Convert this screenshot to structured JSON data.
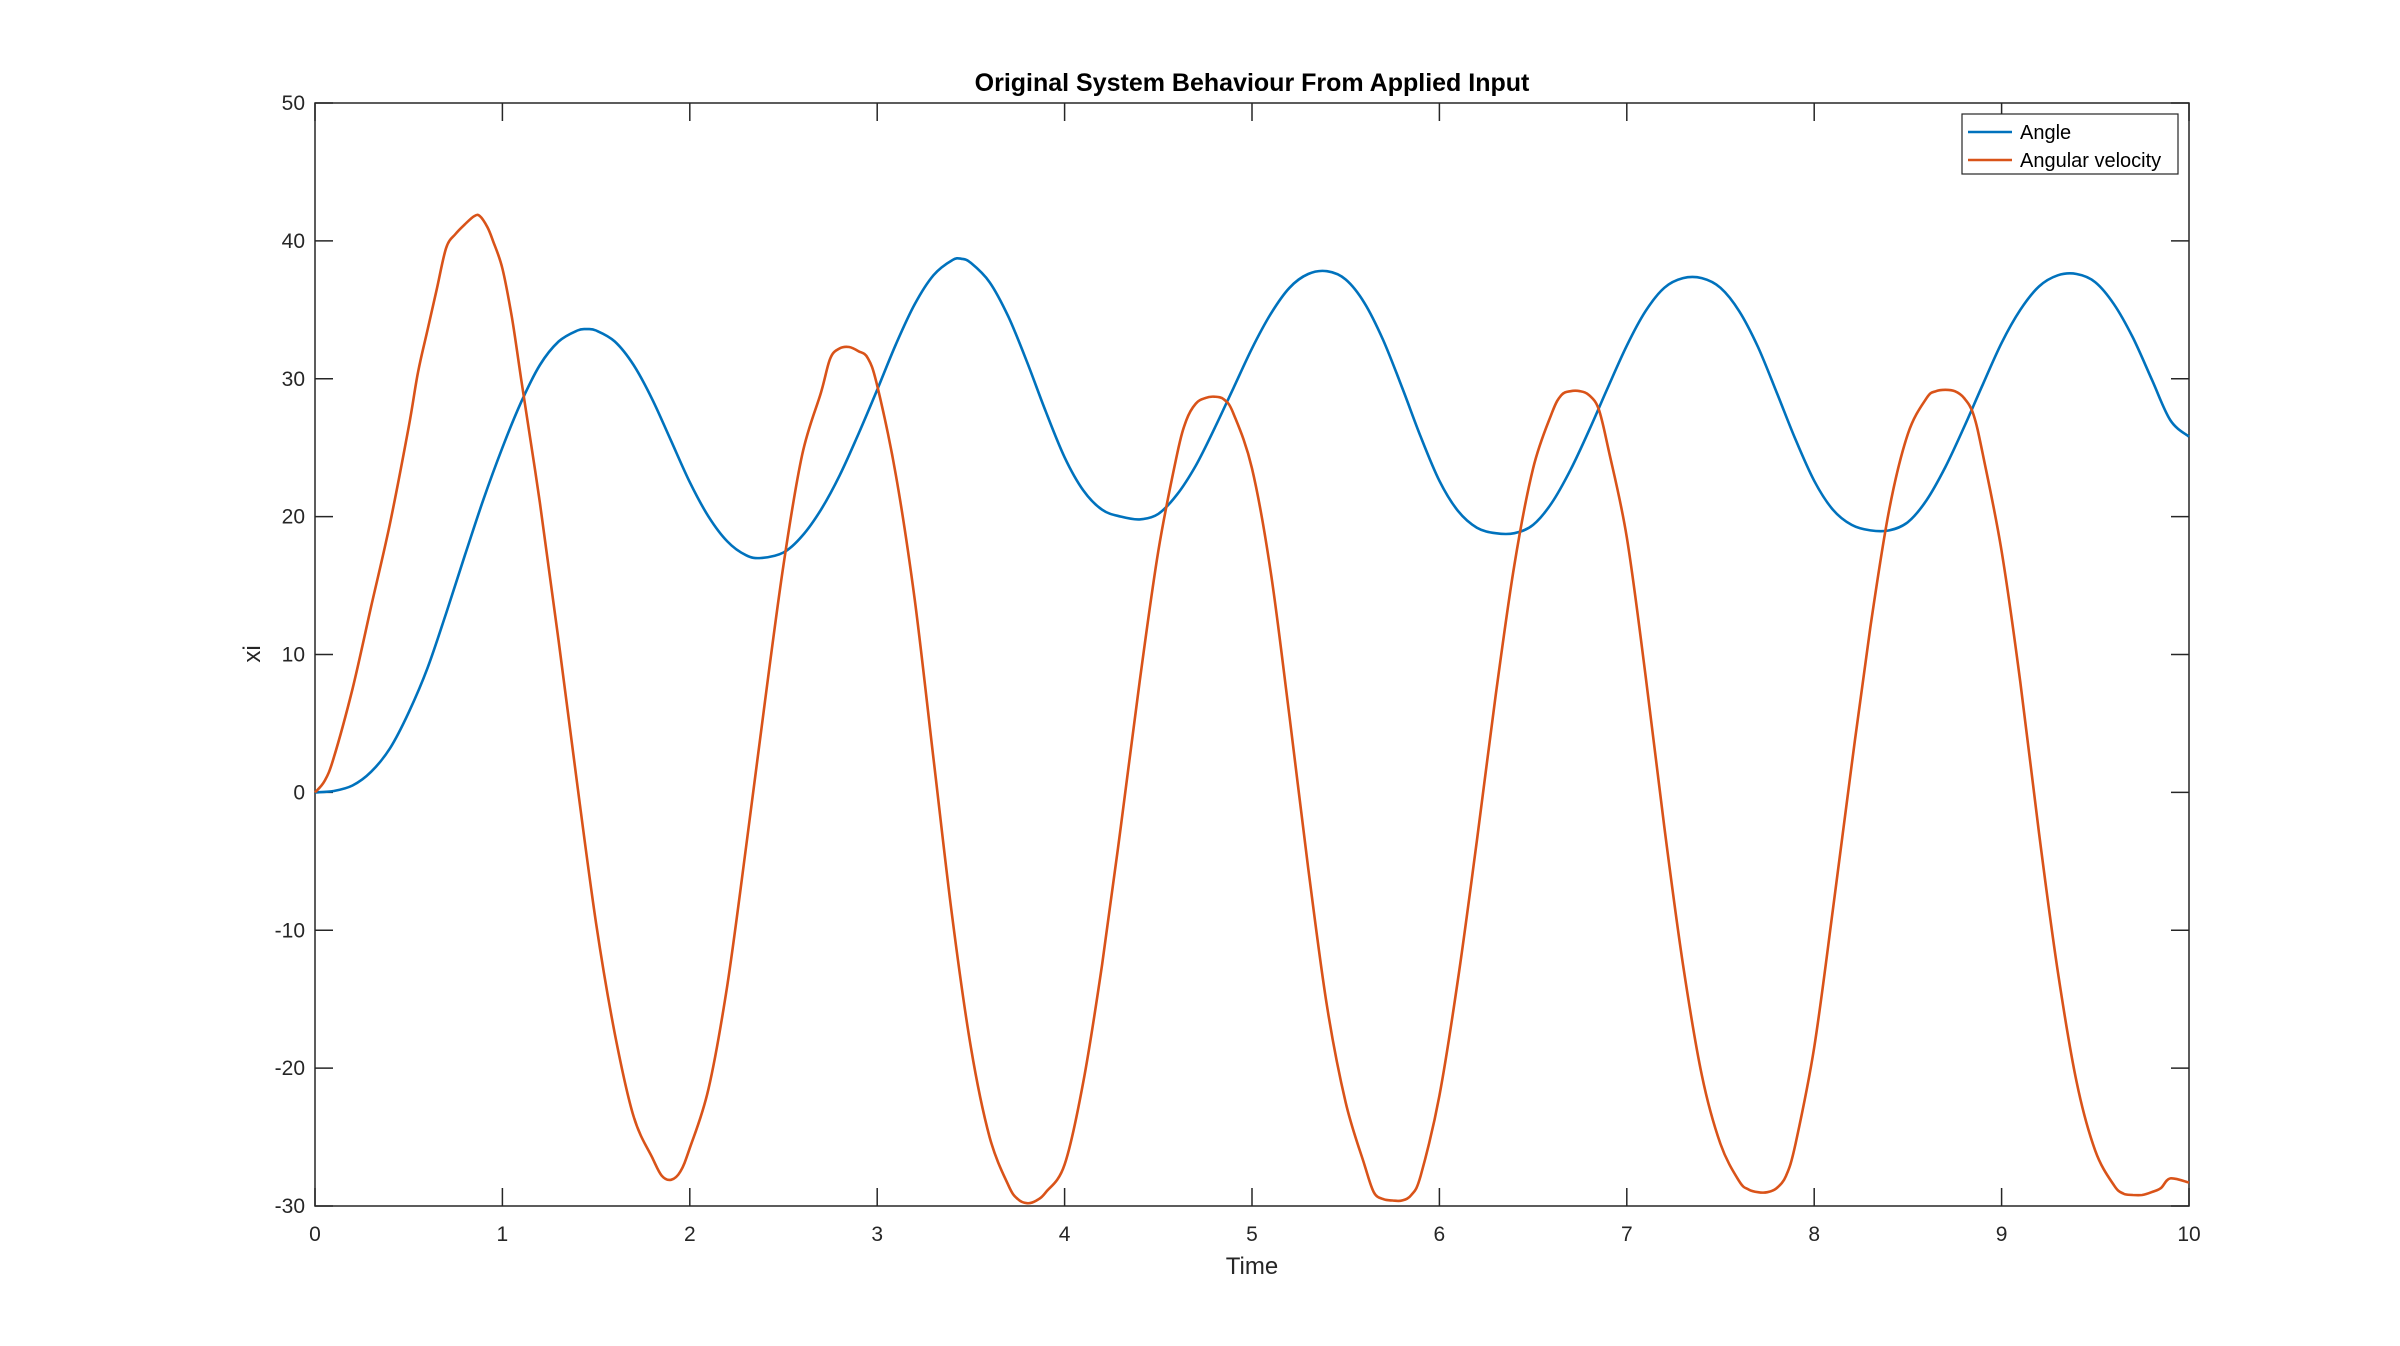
{
  "chart_data": {
    "type": "line",
    "title": "Original System Behaviour From Applied Input",
    "xlabel": "Time",
    "ylabel": "xi",
    "xlim": [
      0,
      10
    ],
    "ylim": [
      -30,
      50
    ],
    "xticks": [
      "0",
      "1",
      "2",
      "3",
      "4",
      "5",
      "6",
      "7",
      "8",
      "9",
      "10"
    ],
    "yticks": [
      "-30",
      "-20",
      "-10",
      "0",
      "10",
      "20",
      "30",
      "40",
      "50"
    ],
    "grid": false,
    "legend_position": "top-right",
    "series": [
      {
        "name": "Angle",
        "color": "#0072BD",
        "points": [
          [
            0,
            0
          ],
          [
            0.1,
            0.1
          ],
          [
            0.2,
            0.5
          ],
          [
            0.3,
            1.5
          ],
          [
            0.4,
            3.2
          ],
          [
            0.5,
            5.8
          ],
          [
            0.6,
            9.0
          ],
          [
            0.7,
            13.0
          ],
          [
            0.8,
            17.2
          ],
          [
            0.9,
            21.3
          ],
          [
            1.0,
            25.0
          ],
          [
            1.1,
            28.3
          ],
          [
            1.2,
            31.0
          ],
          [
            1.3,
            32.7
          ],
          [
            1.4,
            33.5
          ],
          [
            1.45,
            33.6
          ],
          [
            1.5,
            33.5
          ],
          [
            1.6,
            32.7
          ],
          [
            1.7,
            31.0
          ],
          [
            1.8,
            28.5
          ],
          [
            1.9,
            25.5
          ],
          [
            2.0,
            22.5
          ],
          [
            2.1,
            20.0
          ],
          [
            2.2,
            18.2
          ],
          [
            2.3,
            17.2
          ],
          [
            2.38,
            17.0
          ],
          [
            2.5,
            17.4
          ],
          [
            2.6,
            18.6
          ],
          [
            2.7,
            20.5
          ],
          [
            2.8,
            23.0
          ],
          [
            2.9,
            26.0
          ],
          [
            3.0,
            29.2
          ],
          [
            3.1,
            32.5
          ],
          [
            3.2,
            35.4
          ],
          [
            3.3,
            37.5
          ],
          [
            3.4,
            38.6
          ],
          [
            3.45,
            38.7
          ],
          [
            3.5,
            38.4
          ],
          [
            3.6,
            37.0
          ],
          [
            3.7,
            34.5
          ],
          [
            3.8,
            31.2
          ],
          [
            3.9,
            27.6
          ],
          [
            4.0,
            24.3
          ],
          [
            4.1,
            21.9
          ],
          [
            4.2,
            20.5
          ],
          [
            4.3,
            20.0
          ],
          [
            4.4,
            19.8
          ],
          [
            4.5,
            20.2
          ],
          [
            4.6,
            21.6
          ],
          [
            4.7,
            23.7
          ],
          [
            4.8,
            26.4
          ],
          [
            4.9,
            29.3
          ],
          [
            5.0,
            32.2
          ],
          [
            5.1,
            34.7
          ],
          [
            5.2,
            36.6
          ],
          [
            5.3,
            37.6
          ],
          [
            5.4,
            37.8
          ],
          [
            5.5,
            37.2
          ],
          [
            5.6,
            35.5
          ],
          [
            5.7,
            32.8
          ],
          [
            5.8,
            29.4
          ],
          [
            5.9,
            25.8
          ],
          [
            6.0,
            22.6
          ],
          [
            6.1,
            20.4
          ],
          [
            6.2,
            19.2
          ],
          [
            6.3,
            18.8
          ],
          [
            6.4,
            18.8
          ],
          [
            6.5,
            19.4
          ],
          [
            6.6,
            21.0
          ],
          [
            6.7,
            23.4
          ],
          [
            6.8,
            26.3
          ],
          [
            6.9,
            29.4
          ],
          [
            7.0,
            32.4
          ],
          [
            7.1,
            34.9
          ],
          [
            7.2,
            36.6
          ],
          [
            7.3,
            37.3
          ],
          [
            7.4,
            37.3
          ],
          [
            7.5,
            36.6
          ],
          [
            7.6,
            34.9
          ],
          [
            7.7,
            32.3
          ],
          [
            7.8,
            29.0
          ],
          [
            7.9,
            25.6
          ],
          [
            8.0,
            22.6
          ],
          [
            8.1,
            20.5
          ],
          [
            8.2,
            19.4
          ],
          [
            8.3,
            19.0
          ],
          [
            8.4,
            19.0
          ],
          [
            8.5,
            19.6
          ],
          [
            8.6,
            21.2
          ],
          [
            8.7,
            23.6
          ],
          [
            8.8,
            26.5
          ],
          [
            8.9,
            29.6
          ],
          [
            9.0,
            32.6
          ],
          [
            9.1,
            35.0
          ],
          [
            9.2,
            36.7
          ],
          [
            9.3,
            37.5
          ],
          [
            9.4,
            37.6
          ],
          [
            9.5,
            37.0
          ],
          [
            9.6,
            35.4
          ],
          [
            9.7,
            33.0
          ],
          [
            9.8,
            30.0
          ],
          [
            9.9,
            27.0
          ],
          [
            10.0,
            25.8
          ]
        ]
      },
      {
        "name": "Angular velocity",
        "color": "#D95319",
        "points": [
          [
            0,
            0
          ],
          [
            0.05,
            0.8
          ],
          [
            0.1,
            2.5
          ],
          [
            0.2,
            7.5
          ],
          [
            0.3,
            13.5
          ],
          [
            0.4,
            19.5
          ],
          [
            0.5,
            26.5
          ],
          [
            0.55,
            30.5
          ],
          [
            0.6,
            33.5
          ],
          [
            0.65,
            36.5
          ],
          [
            0.7,
            39.5
          ],
          [
            0.75,
            40.5
          ],
          [
            0.8,
            41.2
          ],
          [
            0.85,
            41.8
          ],
          [
            0.88,
            41.8
          ],
          [
            0.92,
            41.0
          ],
          [
            0.95,
            40.0
          ],
          [
            1.0,
            38.0
          ],
          [
            1.05,
            34.5
          ],
          [
            1.1,
            30.0
          ],
          [
            1.2,
            21.0
          ],
          [
            1.3,
            11.0
          ],
          [
            1.4,
            0.5
          ],
          [
            1.5,
            -9.5
          ],
          [
            1.6,
            -17.5
          ],
          [
            1.7,
            -23.5
          ],
          [
            1.8,
            -26.5
          ],
          [
            1.85,
            -27.8
          ],
          [
            1.9,
            -28.1
          ],
          [
            1.95,
            -27.5
          ],
          [
            2.0,
            -25.8
          ],
          [
            2.1,
            -21.5
          ],
          [
            2.2,
            -14.0
          ],
          [
            2.3,
            -4.0
          ],
          [
            2.4,
            6.5
          ],
          [
            2.5,
            16.5
          ],
          [
            2.6,
            24.5
          ],
          [
            2.7,
            29.0
          ],
          [
            2.75,
            31.5
          ],
          [
            2.8,
            32.2
          ],
          [
            2.85,
            32.3
          ],
          [
            2.9,
            32.0
          ],
          [
            2.95,
            31.5
          ],
          [
            3.0,
            29.5
          ],
          [
            3.1,
            23.0
          ],
          [
            3.2,
            14.0
          ],
          [
            3.3,
            2.5
          ],
          [
            3.4,
            -9.0
          ],
          [
            3.5,
            -18.5
          ],
          [
            3.6,
            -25.0
          ],
          [
            3.7,
            -28.5
          ],
          [
            3.75,
            -29.5
          ],
          [
            3.8,
            -29.8
          ],
          [
            3.85,
            -29.6
          ],
          [
            3.9,
            -29.0
          ],
          [
            4.0,
            -27.0
          ],
          [
            4.1,
            -21.0
          ],
          [
            4.2,
            -12.5
          ],
          [
            4.3,
            -2.5
          ],
          [
            4.4,
            8.0
          ],
          [
            4.5,
            17.5
          ],
          [
            4.6,
            24.5
          ],
          [
            4.65,
            27.0
          ],
          [
            4.7,
            28.2
          ],
          [
            4.75,
            28.6
          ],
          [
            4.8,
            28.7
          ],
          [
            4.85,
            28.5
          ],
          [
            4.9,
            27.5
          ],
          [
            5.0,
            23.5
          ],
          [
            5.1,
            16.0
          ],
          [
            5.2,
            5.5
          ],
          [
            5.3,
            -5.5
          ],
          [
            5.4,
            -15.5
          ],
          [
            5.5,
            -22.5
          ],
          [
            5.6,
            -27.0
          ],
          [
            5.65,
            -29.0
          ],
          [
            5.7,
            -29.5
          ],
          [
            5.75,
            -29.6
          ],
          [
            5.8,
            -29.6
          ],
          [
            5.85,
            -29.2
          ],
          [
            5.9,
            -27.8
          ],
          [
            6.0,
            -22.0
          ],
          [
            6.1,
            -13.5
          ],
          [
            6.2,
            -3.5
          ],
          [
            6.3,
            7.0
          ],
          [
            6.4,
            16.5
          ],
          [
            6.5,
            23.5
          ],
          [
            6.6,
            27.5
          ],
          [
            6.65,
            28.8
          ],
          [
            6.7,
            29.1
          ],
          [
            6.75,
            29.1
          ],
          [
            6.8,
            28.8
          ],
          [
            6.85,
            27.8
          ],
          [
            6.9,
            25.0
          ],
          [
            7.0,
            18.5
          ],
          [
            7.1,
            8.5
          ],
          [
            7.2,
            -2.5
          ],
          [
            7.3,
            -12.5
          ],
          [
            7.4,
            -20.5
          ],
          [
            7.5,
            -25.5
          ],
          [
            7.6,
            -28.2
          ],
          [
            7.65,
            -28.8
          ],
          [
            7.7,
            -29.0
          ],
          [
            7.75,
            -29.0
          ],
          [
            7.8,
            -28.7
          ],
          [
            7.85,
            -27.8
          ],
          [
            7.9,
            -25.5
          ],
          [
            8.0,
            -18.5
          ],
          [
            8.1,
            -8.5
          ],
          [
            8.2,
            2.0
          ],
          [
            8.3,
            12.0
          ],
          [
            8.4,
            20.5
          ],
          [
            8.5,
            26.0
          ],
          [
            8.6,
            28.6
          ],
          [
            8.65,
            29.1
          ],
          [
            8.7,
            29.2
          ],
          [
            8.75,
            29.1
          ],
          [
            8.8,
            28.6
          ],
          [
            8.85,
            27.4
          ],
          [
            8.9,
            24.5
          ],
          [
            9.0,
            17.5
          ],
          [
            9.1,
            8.0
          ],
          [
            9.2,
            -3.0
          ],
          [
            9.3,
            -13.0
          ],
          [
            9.4,
            -21.0
          ],
          [
            9.5,
            -26.0
          ],
          [
            9.6,
            -28.5
          ],
          [
            9.65,
            -29.1
          ],
          [
            9.7,
            -29.2
          ],
          [
            9.75,
            -29.2
          ],
          [
            9.8,
            -29.0
          ],
          [
            9.85,
            -28.7
          ],
          [
            9.9,
            -28.0
          ],
          [
            10.0,
            -28.3
          ]
        ]
      }
    ]
  }
}
